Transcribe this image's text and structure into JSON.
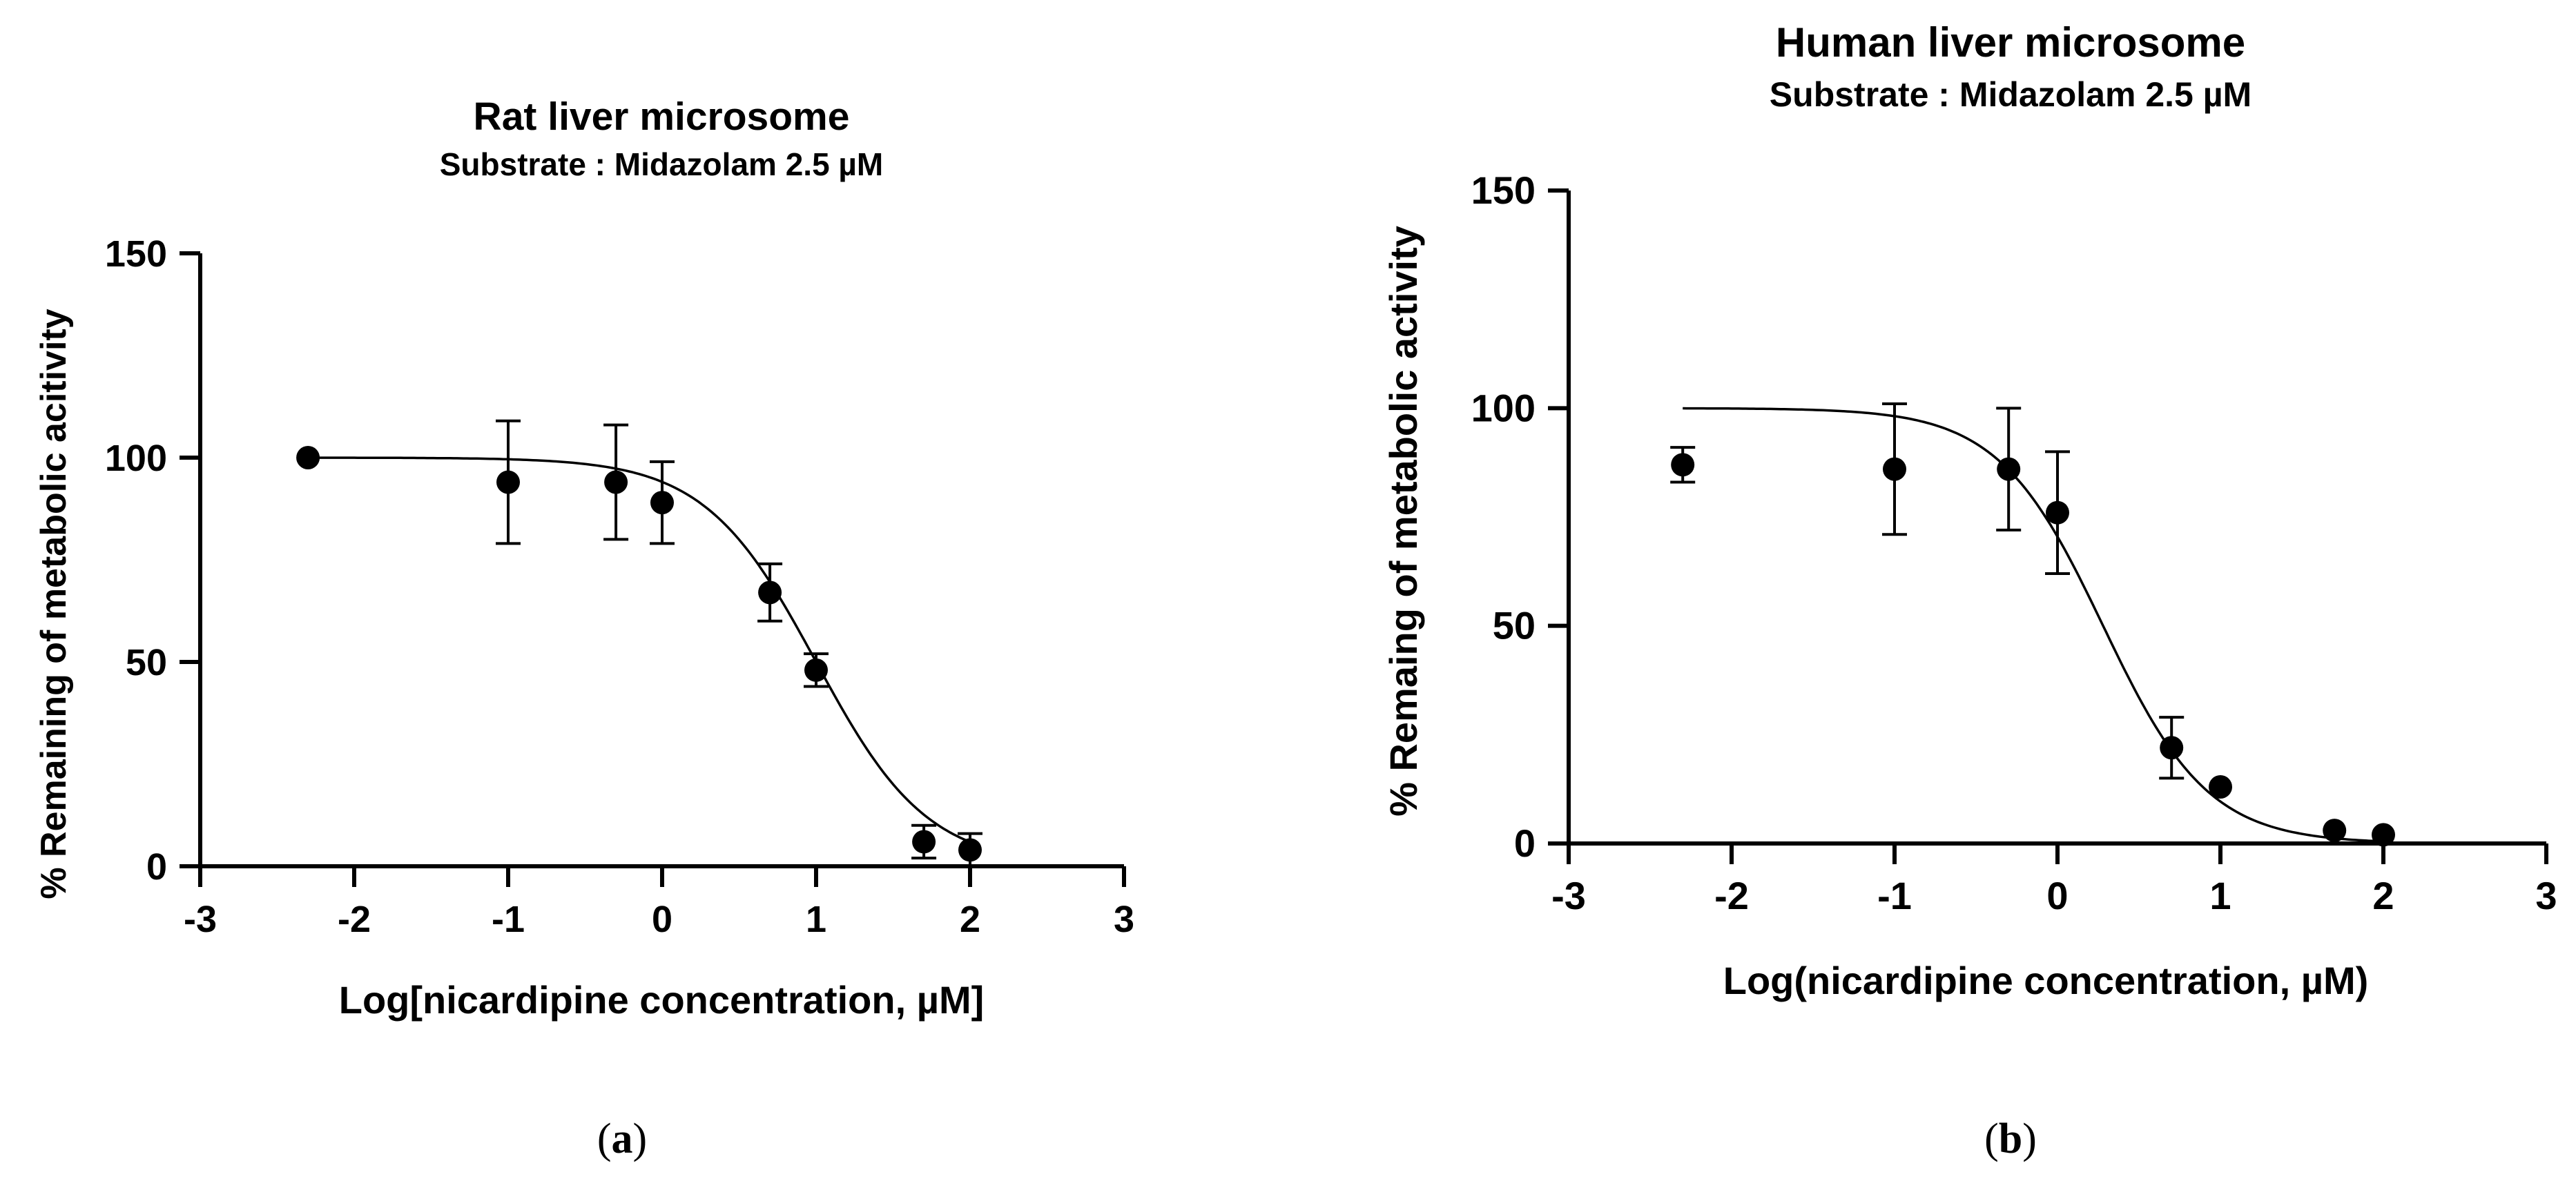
{
  "chart_data": [
    {
      "type": "scatter",
      "fit": "sigmoidal dose-response curve",
      "panel_label": "(a)",
      "panel_letter": "a",
      "title": "Rat liver microsome",
      "subtitle": "Substrate : Midazolam 2.5 µM",
      "xlabel": "Log[nicardipine concentration, µM]",
      "ylabel": "% Remaining of metabolic acitivity",
      "xlim": [
        -3,
        3
      ],
      "ylim": [
        0,
        150
      ],
      "xticks": [
        "-3",
        "-2",
        "-1",
        "0",
        "1",
        "2",
        "3"
      ],
      "yticks": [
        "0",
        "50",
        "100",
        "150"
      ],
      "series": [
        {
          "name": "Rat liver microsome",
          "x": [
            -2.3,
            -1,
            -0.3,
            0,
            0.7,
            1,
            1.7,
            2
          ],
          "y": [
            100,
            94,
            94,
            89,
            67,
            48,
            6,
            4
          ],
          "error": [
            0,
            15,
            14,
            10,
            7,
            4,
            4,
            4
          ]
        }
      ],
      "curve": {
        "top": 100,
        "bottom": 0,
        "log_ic50": 1.0,
        "hill": 1.2,
        "x_range": [
          -2.3,
          2
        ]
      }
    },
    {
      "type": "scatter",
      "fit": "sigmoidal dose-response curve",
      "panel_label": "(b)",
      "panel_letter": "b",
      "title": "Human liver microsome",
      "subtitle": "Substrate : Midazolam 2.5 µM",
      "xlabel": "Log(nicardipine concentration, µM)",
      "ylabel": "% Remaing of metabolic activity",
      "xlim": [
        -3,
        3
      ],
      "ylim": [
        0,
        150
      ],
      "xticks": [
        "-3",
        "-2",
        "-1",
        "0",
        "1",
        "2",
        "3"
      ],
      "yticks": [
        "0",
        "50",
        "100",
        "150"
      ],
      "series": [
        {
          "name": "Human liver microsome",
          "x": [
            -2.3,
            -1,
            -0.3,
            0,
            0.7,
            1,
            1.7,
            2
          ],
          "y": [
            87,
            86,
            86,
            76,
            22,
            13,
            3,
            2
          ],
          "error": [
            4,
            15,
            14,
            14,
            7,
            0,
            0,
            0
          ]
        }
      ],
      "curve": {
        "top": 100,
        "bottom": 0,
        "log_ic50": 0.28,
        "hill": 1.35,
        "x_range": [
          -2.3,
          2
        ]
      }
    }
  ]
}
